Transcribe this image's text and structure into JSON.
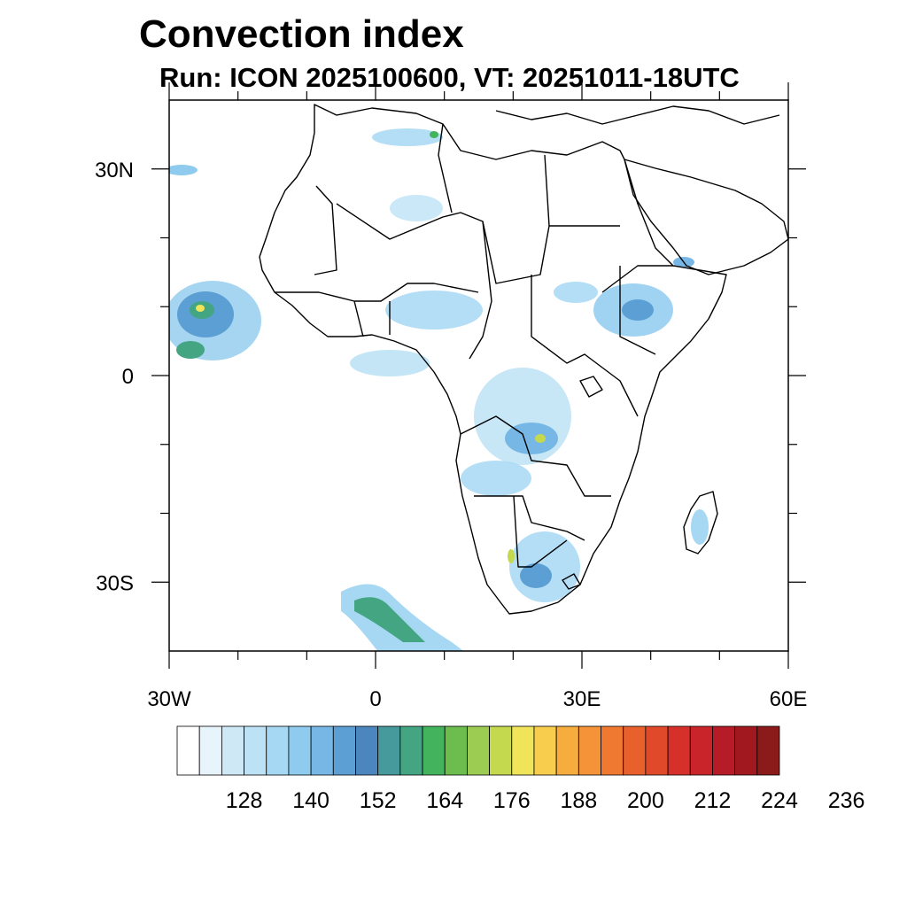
{
  "title": "Convection index",
  "subtitle": "Run: ICON 2025100600,  VT: 20251011-18UTC",
  "map": {
    "lon_range": [
      -30,
      60
    ],
    "lat_range": [
      -40,
      40
    ],
    "x_ticks": [
      {
        "lon": -30,
        "label": "30W"
      },
      {
        "lon": 0,
        "label": "0"
      },
      {
        "lon": 30,
        "label": "30E"
      },
      {
        "lon": 60,
        "label": "60E"
      }
    ],
    "y_ticks": [
      {
        "lat": 30,
        "label": "30N"
      },
      {
        "lat": 0,
        "label": "0"
      },
      {
        "lat": -30,
        "label": "30S"
      }
    ],
    "minor_lon": [
      -20,
      -10,
      10,
      20,
      40,
      50
    ],
    "minor_lat": [
      20,
      10,
      -10,
      -20
    ]
  },
  "colorbar": {
    "labels": [
      "128",
      "140",
      "152",
      "164",
      "176",
      "188",
      "200",
      "212",
      "224",
      "236"
    ],
    "colors": [
      "#ffffff",
      "#e8f4fb",
      "#cfe8f6",
      "#bde2f5",
      "#a6d8f3",
      "#8fcbee",
      "#77b7e5",
      "#5c9fd4",
      "#4c86be",
      "#479a9c",
      "#44a583",
      "#44b35d",
      "#6cbc4e",
      "#9ccc51",
      "#c5d94f",
      "#efe45a",
      "#f8cd4d",
      "#f7ad3e",
      "#f49338",
      "#ef7931",
      "#e8612d",
      "#e04a2b",
      "#d72f29",
      "#c8242a",
      "#b51c28",
      "#a1191f",
      "#8b1a1a"
    ]
  }
}
